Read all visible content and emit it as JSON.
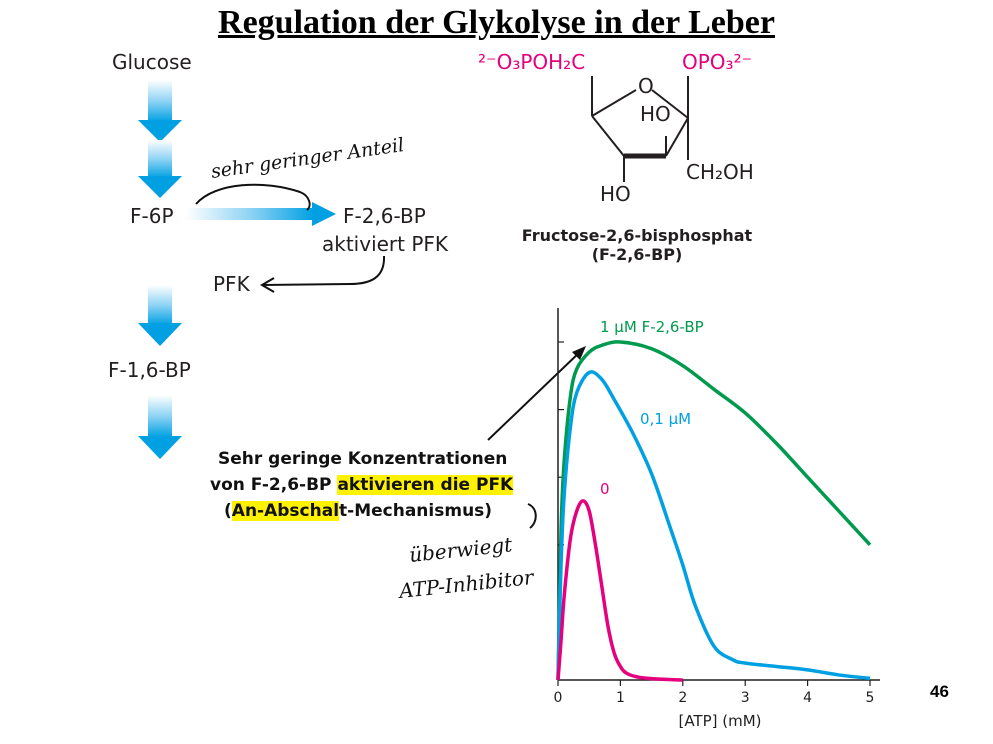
{
  "page": {
    "title": "Regulation der Glykolyse in der Leber",
    "page_number": "46"
  },
  "pathway": {
    "glucose": "Glucose",
    "f6p": "F-6P",
    "f26bp": "F-2,6-BP",
    "activates": "aktiviert PFK",
    "pfk": "PFK",
    "f16bp": "F-1,6-BP"
  },
  "handwriting": {
    "note1": "sehr geringer Anteil",
    "note2_line1": "überwiegt",
    "note2_line2": "ATP-Inhibitor"
  },
  "structure": {
    "top_left_group": "²⁻O₃POH₂C",
    "top_right_group": "OPO₃²⁻",
    "ring_o": "O",
    "ho_ring": "HO",
    "ch2oh": "CH₂OH",
    "ho_bottom": "HO",
    "caption_line1": "Fructose-2,6-bisphosphat",
    "caption_line2": "(F-2,6-BP)",
    "phosphate_color": "#e5007e"
  },
  "callout": {
    "line1": "Sehr geringe Konzentrationen",
    "line2_plain": "von F-2,6-BP ",
    "line2_highlight": "aktivieren die PFK",
    "line3_open": "(",
    "line3_highlight": "An-Abschal",
    "line3_rest": "t-Mechanismus)",
    "highlight_color": "#fff200"
  },
  "chart_data": {
    "type": "line",
    "xlabel": "[ATP] (mM)",
    "ylabel": "",
    "xlim": [
      0,
      5
    ],
    "x_ticks": [
      "0",
      "1",
      "2",
      "3",
      "4",
      "5"
    ],
    "series": [
      {
        "name": "1 µM F-2,6-BP",
        "color": "#009a4e",
        "x": [
          0,
          0.05,
          0.1,
          0.2,
          0.3,
          0.5,
          0.7,
          1.0,
          1.5,
          2.0,
          2.5,
          3.0,
          3.5,
          4.0,
          4.5,
          5.0
        ],
        "y": [
          0,
          0.45,
          0.65,
          0.84,
          0.92,
          0.97,
          0.99,
          1.0,
          0.98,
          0.93,
          0.86,
          0.79,
          0.7,
          0.6,
          0.5,
          0.4
        ]
      },
      {
        "name": "0,1 µM",
        "color": "#00a0e3",
        "x": [
          0,
          0.05,
          0.1,
          0.2,
          0.3,
          0.5,
          0.7,
          0.9,
          1.2,
          1.5,
          1.8,
          2.0,
          2.2,
          2.5,
          2.8,
          3.0,
          3.5,
          4.0,
          4.5,
          5.0
        ],
        "y": [
          0,
          0.35,
          0.55,
          0.75,
          0.85,
          0.91,
          0.89,
          0.83,
          0.73,
          0.61,
          0.45,
          0.34,
          0.22,
          0.1,
          0.06,
          0.05,
          0.04,
          0.03,
          0.015,
          0.005
        ]
      },
      {
        "name": "0",
        "color": "#e5007e",
        "x": [
          0,
          0.05,
          0.1,
          0.2,
          0.3,
          0.4,
          0.5,
          0.6,
          0.7,
          0.8,
          0.9,
          1.0,
          1.1,
          1.3,
          1.6,
          2.0
        ],
        "y": [
          0,
          0.12,
          0.25,
          0.42,
          0.5,
          0.53,
          0.5,
          0.4,
          0.28,
          0.16,
          0.08,
          0.04,
          0.02,
          0.008,
          0.003,
          0.0
        ]
      }
    ]
  }
}
